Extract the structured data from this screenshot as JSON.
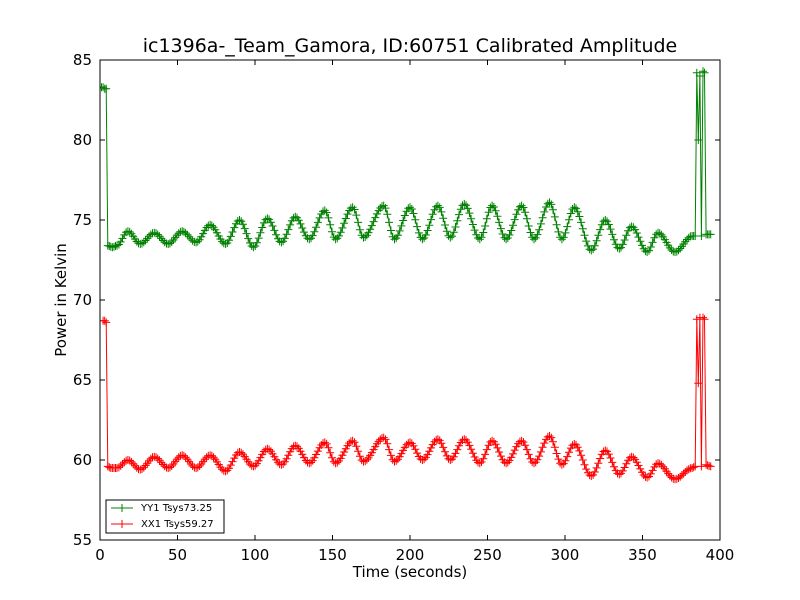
{
  "chart_data": {
    "type": "line",
    "title": "ic1396a-_Team_Gamora, ID:60751 Calibrated Amplitude",
    "xlabel": "Time (seconds)",
    "ylabel": "Power in Kelvin",
    "xlim": [
      0,
      400
    ],
    "ylim": [
      55,
      85
    ],
    "x_ticks": [
      "0",
      "50",
      "100",
      "150",
      "200",
      "250",
      "300",
      "350",
      "400"
    ],
    "y_ticks": [
      "55",
      "60",
      "65",
      "70",
      "75",
      "80",
      "85"
    ],
    "grid": false,
    "legend_position": "lower-left",
    "marker": "+",
    "series": [
      {
        "name": "YY1 Tsys73.25",
        "color": "#008000",
        "points": [
          [
            1,
            83.3
          ],
          [
            2,
            83.3
          ],
          [
            3,
            83.2
          ],
          [
            4,
            83.2
          ],
          [
            5,
            73.4
          ],
          [
            8,
            73.3
          ],
          [
            11,
            73.4
          ],
          [
            18,
            74.3
          ],
          [
            26,
            73.5
          ],
          [
            35,
            74.2
          ],
          [
            44,
            73.5
          ],
          [
            53,
            74.3
          ],
          [
            62,
            73.6
          ],
          [
            71,
            74.7
          ],
          [
            81,
            73.5
          ],
          [
            90,
            75.0
          ],
          [
            99,
            73.3
          ],
          [
            108,
            75.1
          ],
          [
            117,
            73.6
          ],
          [
            126,
            75.2
          ],
          [
            135,
            73.8
          ],
          [
            145,
            75.6
          ],
          [
            152,
            73.8
          ],
          [
            163,
            75.8
          ],
          [
            170,
            73.9
          ],
          [
            183,
            75.9
          ],
          [
            190,
            73.8
          ],
          [
            200,
            75.8
          ],
          [
            208,
            73.8
          ],
          [
            218,
            75.9
          ],
          [
            226,
            73.9
          ],
          [
            235,
            76.0
          ],
          [
            245,
            73.8
          ],
          [
            253,
            75.9
          ],
          [
            262,
            73.8
          ],
          [
            272,
            75.9
          ],
          [
            280,
            73.8
          ],
          [
            290,
            76.1
          ],
          [
            298,
            73.8
          ],
          [
            306,
            75.8
          ],
          [
            317,
            73.1
          ],
          [
            326,
            75.0
          ],
          [
            335,
            73.2
          ],
          [
            343,
            74.6
          ],
          [
            353,
            73.0
          ],
          [
            360,
            74.2
          ],
          [
            371,
            73.0
          ],
          [
            382,
            74.0
          ],
          [
            384,
            74.0
          ],
          [
            385,
            84.2
          ],
          [
            386,
            80.0
          ],
          [
            387,
            84.0
          ],
          [
            388,
            74.0
          ],
          [
            389,
            84.3
          ],
          [
            390,
            84.2
          ],
          [
            391,
            74.1
          ],
          [
            394,
            74.1
          ]
        ]
      },
      {
        "name": "XX1 Tsys59.27",
        "color": "#ff0000",
        "points": [
          [
            2,
            68.7
          ],
          [
            3,
            68.7
          ],
          [
            4,
            68.6
          ],
          [
            5,
            59.6
          ],
          [
            7,
            59.5
          ],
          [
            11,
            59.5
          ],
          [
            18,
            60.0
          ],
          [
            26,
            59.4
          ],
          [
            35,
            60.2
          ],
          [
            44,
            59.5
          ],
          [
            53,
            60.3
          ],
          [
            62,
            59.5
          ],
          [
            71,
            60.3
          ],
          [
            81,
            59.3
          ],
          [
            90,
            60.5
          ],
          [
            99,
            59.6
          ],
          [
            108,
            60.7
          ],
          [
            117,
            59.7
          ],
          [
            126,
            60.9
          ],
          [
            135,
            59.8
          ],
          [
            145,
            61.1
          ],
          [
            152,
            59.8
          ],
          [
            163,
            61.2
          ],
          [
            170,
            59.9
          ],
          [
            183,
            61.4
          ],
          [
            190,
            59.9
          ],
          [
            200,
            61.1
          ],
          [
            208,
            60.0
          ],
          [
            218,
            61.3
          ],
          [
            226,
            60.0
          ],
          [
            235,
            61.3
          ],
          [
            245,
            59.8
          ],
          [
            253,
            61.2
          ],
          [
            262,
            59.8
          ],
          [
            272,
            61.2
          ],
          [
            280,
            59.8
          ],
          [
            290,
            61.5
          ],
          [
            298,
            59.7
          ],
          [
            306,
            61.0
          ],
          [
            317,
            59.0
          ],
          [
            326,
            60.6
          ],
          [
            335,
            59.1
          ],
          [
            343,
            60.2
          ],
          [
            353,
            58.9
          ],
          [
            360,
            59.8
          ],
          [
            371,
            58.8
          ],
          [
            382,
            59.5
          ],
          [
            384,
            59.6
          ],
          [
            385,
            68.8
          ],
          [
            386,
            64.8
          ],
          [
            387,
            68.9
          ],
          [
            388,
            59.6
          ],
          [
            389,
            68.9
          ],
          [
            390,
            68.8
          ],
          [
            391,
            59.7
          ],
          [
            394,
            59.6
          ]
        ]
      }
    ]
  }
}
